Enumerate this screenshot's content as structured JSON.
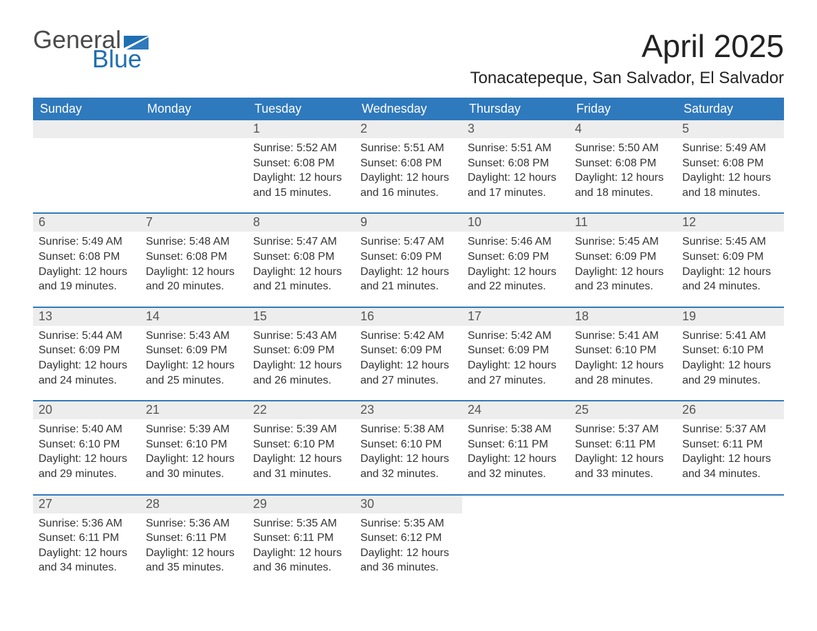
{
  "logo": {
    "text1": "General",
    "text2": "Blue",
    "gray": "#4a4a4a",
    "blue": "#1f6fb2"
  },
  "title": "April 2025",
  "location": "Tonacatepeque, San Salvador, El Salvador",
  "accent_color": "#2f79bd",
  "strip_color": "#ededed",
  "day_headers": [
    "Sunday",
    "Monday",
    "Tuesday",
    "Wednesday",
    "Thursday",
    "Friday",
    "Saturday"
  ],
  "weeks": [
    [
      {
        "n": "",
        "sunrise": "",
        "sunset": "",
        "daylight": ""
      },
      {
        "n": "",
        "sunrise": "",
        "sunset": "",
        "daylight": ""
      },
      {
        "n": "1",
        "sunrise": "Sunrise: 5:52 AM",
        "sunset": "Sunset: 6:08 PM",
        "daylight": "Daylight: 12 hours and 15 minutes."
      },
      {
        "n": "2",
        "sunrise": "Sunrise: 5:51 AM",
        "sunset": "Sunset: 6:08 PM",
        "daylight": "Daylight: 12 hours and 16 minutes."
      },
      {
        "n": "3",
        "sunrise": "Sunrise: 5:51 AM",
        "sunset": "Sunset: 6:08 PM",
        "daylight": "Daylight: 12 hours and 17 minutes."
      },
      {
        "n": "4",
        "sunrise": "Sunrise: 5:50 AM",
        "sunset": "Sunset: 6:08 PM",
        "daylight": "Daylight: 12 hours and 18 minutes."
      },
      {
        "n": "5",
        "sunrise": "Sunrise: 5:49 AM",
        "sunset": "Sunset: 6:08 PM",
        "daylight": "Daylight: 12 hours and 18 minutes."
      }
    ],
    [
      {
        "n": "6",
        "sunrise": "Sunrise: 5:49 AM",
        "sunset": "Sunset: 6:08 PM",
        "daylight": "Daylight: 12 hours and 19 minutes."
      },
      {
        "n": "7",
        "sunrise": "Sunrise: 5:48 AM",
        "sunset": "Sunset: 6:08 PM",
        "daylight": "Daylight: 12 hours and 20 minutes."
      },
      {
        "n": "8",
        "sunrise": "Sunrise: 5:47 AM",
        "sunset": "Sunset: 6:08 PM",
        "daylight": "Daylight: 12 hours and 21 minutes."
      },
      {
        "n": "9",
        "sunrise": "Sunrise: 5:47 AM",
        "sunset": "Sunset: 6:09 PM",
        "daylight": "Daylight: 12 hours and 21 minutes."
      },
      {
        "n": "10",
        "sunrise": "Sunrise: 5:46 AM",
        "sunset": "Sunset: 6:09 PM",
        "daylight": "Daylight: 12 hours and 22 minutes."
      },
      {
        "n": "11",
        "sunrise": "Sunrise: 5:45 AM",
        "sunset": "Sunset: 6:09 PM",
        "daylight": "Daylight: 12 hours and 23 minutes."
      },
      {
        "n": "12",
        "sunrise": "Sunrise: 5:45 AM",
        "sunset": "Sunset: 6:09 PM",
        "daylight": "Daylight: 12 hours and 24 minutes."
      }
    ],
    [
      {
        "n": "13",
        "sunrise": "Sunrise: 5:44 AM",
        "sunset": "Sunset: 6:09 PM",
        "daylight": "Daylight: 12 hours and 24 minutes."
      },
      {
        "n": "14",
        "sunrise": "Sunrise: 5:43 AM",
        "sunset": "Sunset: 6:09 PM",
        "daylight": "Daylight: 12 hours and 25 minutes."
      },
      {
        "n": "15",
        "sunrise": "Sunrise: 5:43 AM",
        "sunset": "Sunset: 6:09 PM",
        "daylight": "Daylight: 12 hours and 26 minutes."
      },
      {
        "n": "16",
        "sunrise": "Sunrise: 5:42 AM",
        "sunset": "Sunset: 6:09 PM",
        "daylight": "Daylight: 12 hours and 27 minutes."
      },
      {
        "n": "17",
        "sunrise": "Sunrise: 5:42 AM",
        "sunset": "Sunset: 6:09 PM",
        "daylight": "Daylight: 12 hours and 27 minutes."
      },
      {
        "n": "18",
        "sunrise": "Sunrise: 5:41 AM",
        "sunset": "Sunset: 6:10 PM",
        "daylight": "Daylight: 12 hours and 28 minutes."
      },
      {
        "n": "19",
        "sunrise": "Sunrise: 5:41 AM",
        "sunset": "Sunset: 6:10 PM",
        "daylight": "Daylight: 12 hours and 29 minutes."
      }
    ],
    [
      {
        "n": "20",
        "sunrise": "Sunrise: 5:40 AM",
        "sunset": "Sunset: 6:10 PM",
        "daylight": "Daylight: 12 hours and 29 minutes."
      },
      {
        "n": "21",
        "sunrise": "Sunrise: 5:39 AM",
        "sunset": "Sunset: 6:10 PM",
        "daylight": "Daylight: 12 hours and 30 minutes."
      },
      {
        "n": "22",
        "sunrise": "Sunrise: 5:39 AM",
        "sunset": "Sunset: 6:10 PM",
        "daylight": "Daylight: 12 hours and 31 minutes."
      },
      {
        "n": "23",
        "sunrise": "Sunrise: 5:38 AM",
        "sunset": "Sunset: 6:10 PM",
        "daylight": "Daylight: 12 hours and 32 minutes."
      },
      {
        "n": "24",
        "sunrise": "Sunrise: 5:38 AM",
        "sunset": "Sunset: 6:11 PM",
        "daylight": "Daylight: 12 hours and 32 minutes."
      },
      {
        "n": "25",
        "sunrise": "Sunrise: 5:37 AM",
        "sunset": "Sunset: 6:11 PM",
        "daylight": "Daylight: 12 hours and 33 minutes."
      },
      {
        "n": "26",
        "sunrise": "Sunrise: 5:37 AM",
        "sunset": "Sunset: 6:11 PM",
        "daylight": "Daylight: 12 hours and 34 minutes."
      }
    ],
    [
      {
        "n": "27",
        "sunrise": "Sunrise: 5:36 AM",
        "sunset": "Sunset: 6:11 PM",
        "daylight": "Daylight: 12 hours and 34 minutes."
      },
      {
        "n": "28",
        "sunrise": "Sunrise: 5:36 AM",
        "sunset": "Sunset: 6:11 PM",
        "daylight": "Daylight: 12 hours and 35 minutes."
      },
      {
        "n": "29",
        "sunrise": "Sunrise: 5:35 AM",
        "sunset": "Sunset: 6:11 PM",
        "daylight": "Daylight: 12 hours and 36 minutes."
      },
      {
        "n": "30",
        "sunrise": "Sunrise: 5:35 AM",
        "sunset": "Sunset: 6:12 PM",
        "daylight": "Daylight: 12 hours and 36 minutes."
      },
      {
        "n": "",
        "sunrise": "",
        "sunset": "",
        "daylight": ""
      },
      {
        "n": "",
        "sunrise": "",
        "sunset": "",
        "daylight": ""
      },
      {
        "n": "",
        "sunrise": "",
        "sunset": "",
        "daylight": ""
      }
    ]
  ]
}
